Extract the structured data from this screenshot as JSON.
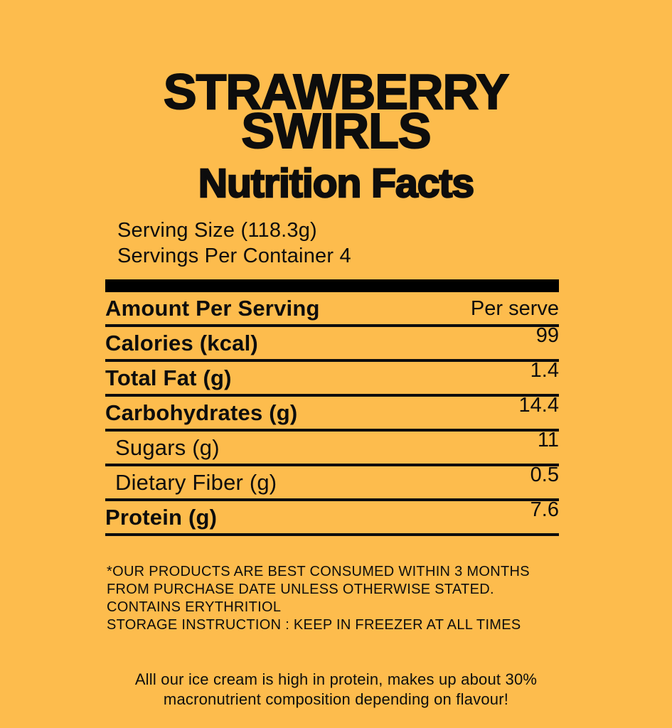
{
  "page": {
    "background_color": "#FDBC4D",
    "text_color": "#0d0d0d"
  },
  "header": {
    "product_name_line1": "STRAWBERRY",
    "product_name_line2": "SWIRLS",
    "label_title": "Nutrition Facts",
    "serving_size": "Serving Size (118.3g)",
    "servings_per_container": "Servings Per Container 4"
  },
  "table": {
    "header": {
      "left": "Amount Per Serving",
      "right": "Per serve"
    },
    "rows": [
      {
        "label": "Calories (kcal)",
        "value": "99"
      },
      {
        "label": "Total Fat (g)",
        "value": "1.4"
      },
      {
        "label": "Carbohydrates (g)",
        "value": "14.4"
      },
      {
        "label": "Sugars (g)",
        "value": "11"
      },
      {
        "label": "Dietary Fiber (g)",
        "value": "0.5"
      },
      {
        "label": "Protein (g)",
        "value": "7.6"
      }
    ]
  },
  "footnotes": {
    "storage_note": "*OUR PRODUCTS ARE BEST CONSUMED WITHIN 3 MONTHS\nFROM PURCHASE DATE UNLESS OTHERWISE STATED.\nCONTAINS ERYTHRITIOL\nSTORAGE INSTRUCTION : KEEP IN FREEZER AT ALL TIMES",
    "protein_note": "Alll our ice cream is high in protein, makes up about 30%\nmacronutrient composition depending on flavour!"
  }
}
